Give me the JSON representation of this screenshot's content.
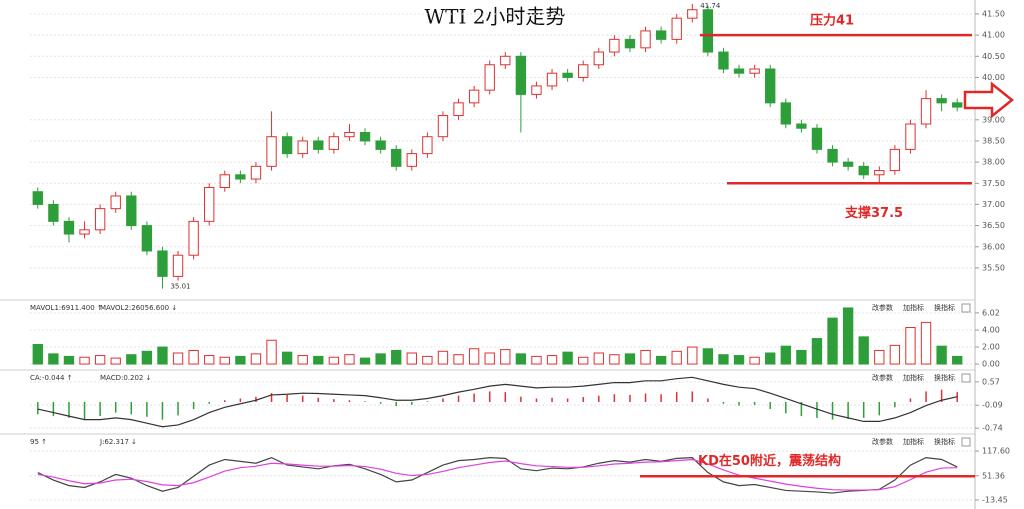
{
  "chart_data": [
    {
      "type": "candlestick",
      "title": "WTI 2小时走势",
      "up_color": "#e03030",
      "down_color": "#2e9e3a",
      "ohlc": [
        [
          37.3,
          37.4,
          36.9,
          37.0
        ],
        [
          37.0,
          37.1,
          36.5,
          36.6
        ],
        [
          36.6,
          36.7,
          36.1,
          36.3
        ],
        [
          36.3,
          36.6,
          36.2,
          36.4
        ],
        [
          36.4,
          37.0,
          36.3,
          36.9
        ],
        [
          36.9,
          37.3,
          36.8,
          37.2
        ],
        [
          37.2,
          37.3,
          36.4,
          36.5
        ],
        [
          36.5,
          36.6,
          35.8,
          35.9
        ],
        [
          35.9,
          36.0,
          35.01,
          35.3
        ],
        [
          35.3,
          35.9,
          35.2,
          35.8
        ],
        [
          35.8,
          36.7,
          35.7,
          36.6
        ],
        [
          36.6,
          37.5,
          36.5,
          37.4
        ],
        [
          37.4,
          37.8,
          37.3,
          37.7
        ],
        [
          37.7,
          37.8,
          37.5,
          37.6
        ],
        [
          37.6,
          38.0,
          37.5,
          37.9
        ],
        [
          37.9,
          39.2,
          37.8,
          38.6
        ],
        [
          38.6,
          38.7,
          38.1,
          38.2
        ],
        [
          38.2,
          38.6,
          38.1,
          38.5
        ],
        [
          38.5,
          38.6,
          38.2,
          38.3
        ],
        [
          38.3,
          38.7,
          38.2,
          38.6
        ],
        [
          38.6,
          38.9,
          38.5,
          38.7
        ],
        [
          38.7,
          38.8,
          38.4,
          38.5
        ],
        [
          38.5,
          38.6,
          38.2,
          38.3
        ],
        [
          38.3,
          38.4,
          37.8,
          37.9
        ],
        [
          37.9,
          38.3,
          37.8,
          38.2
        ],
        [
          38.2,
          38.7,
          38.1,
          38.6
        ],
        [
          38.6,
          39.2,
          38.5,
          39.1
        ],
        [
          39.1,
          39.5,
          39.0,
          39.4
        ],
        [
          39.4,
          39.8,
          39.3,
          39.7
        ],
        [
          39.7,
          40.4,
          39.6,
          40.3
        ],
        [
          40.3,
          40.6,
          40.2,
          40.5
        ],
        [
          40.5,
          40.6,
          38.7,
          39.6
        ],
        [
          39.6,
          39.9,
          39.5,
          39.8
        ],
        [
          39.8,
          40.2,
          39.7,
          40.1
        ],
        [
          40.1,
          40.2,
          39.9,
          40.0
        ],
        [
          40.0,
          40.4,
          39.9,
          40.3
        ],
        [
          40.3,
          40.7,
          40.2,
          40.6
        ],
        [
          40.6,
          41.0,
          40.5,
          40.9
        ],
        [
          40.9,
          41.0,
          40.6,
          40.7
        ],
        [
          40.7,
          41.2,
          40.6,
          41.1
        ],
        [
          41.1,
          41.2,
          40.8,
          40.9
        ],
        [
          40.9,
          41.5,
          40.8,
          41.4
        ],
        [
          41.4,
          41.74,
          41.3,
          41.6
        ],
        [
          41.6,
          41.7,
          40.5,
          40.6
        ],
        [
          40.6,
          40.7,
          40.1,
          40.2
        ],
        [
          40.2,
          40.3,
          40.0,
          40.1
        ],
        [
          40.1,
          40.3,
          40.0,
          40.2
        ],
        [
          40.2,
          40.3,
          39.3,
          39.4
        ],
        [
          39.4,
          39.5,
          38.8,
          38.9
        ],
        [
          38.9,
          39.0,
          38.7,
          38.8
        ],
        [
          38.8,
          38.9,
          38.2,
          38.3
        ],
        [
          38.3,
          38.4,
          37.9,
          38.0
        ],
        [
          38.0,
          38.1,
          37.8,
          37.9
        ],
        [
          37.9,
          38.0,
          37.6,
          37.7
        ],
        [
          37.7,
          37.9,
          37.5,
          37.8
        ],
        [
          37.8,
          38.4,
          37.7,
          38.3
        ],
        [
          38.3,
          39.0,
          38.2,
          38.9
        ],
        [
          38.9,
          39.7,
          38.8,
          39.5
        ],
        [
          39.5,
          39.6,
          39.2,
          39.4
        ],
        [
          39.4,
          39.5,
          39.2,
          39.3
        ]
      ],
      "ylim": [
        34.86,
        41.83
      ],
      "yticks": [
        {
          "value": 41.5,
          "label": "41.50"
        },
        {
          "value": 41,
          "label": "41.00"
        },
        {
          "value": 40.5,
          "label": "40.50"
        },
        {
          "value": 40,
          "label": "40.00"
        },
        {
          "value": 39,
          "label": "39.00"
        },
        {
          "value": 38.5,
          "label": "38.50"
        },
        {
          "value": 38,
          "label": "38.00"
        },
        {
          "value": 37.5,
          "label": "37.50"
        },
        {
          "value": 37,
          "label": "37.00"
        },
        {
          "value": 36.5,
          "label": "36.50"
        },
        {
          "value": 36,
          "label": "36.00"
        },
        {
          "value": 35.5,
          "label": "35.50"
        }
      ],
      "annotations": [
        {
          "label": "压力41",
          "value": 41,
          "color": "#e02828"
        },
        {
          "label": "支撑37.5",
          "value": 37.5,
          "color": "#e02828"
        }
      ]
    },
    {
      "type": "bar",
      "legend": [
        "MAVOL1:6911.400 ↑",
        "MAVOL2:26056.600 ↓"
      ],
      "toolbar": [
        "改参数",
        "加指标",
        "换指标"
      ],
      "values": [
        2.3,
        1.2,
        0.9,
        0.8,
        1.0,
        0.7,
        1.1,
        1.5,
        2.0,
        1.3,
        1.6,
        1.0,
        0.8,
        0.9,
        1.2,
        2.8,
        1.4,
        1.0,
        0.9,
        0.8,
        1.1,
        0.7,
        1.2,
        1.6,
        1.3,
        0.9,
        1.5,
        1.1,
        1.8,
        1.3,
        1.7,
        1.2,
        0.9,
        1.0,
        1.4,
        0.8,
        1.3,
        1.1,
        1.2,
        1.6,
        0.9,
        1.5,
        2.0,
        1.8,
        1.1,
        1.0,
        0.8,
        1.3,
        2.1,
        1.6,
        3.0,
        5.4,
        6.6,
        3.2,
        1.6,
        2.2,
        4.3,
        4.9,
        2.1,
        0.9
      ],
      "ylim": [
        -0.7,
        7.3
      ],
      "yticks": [
        6.02,
        {
          "value": 4,
          "label": "4.00"
        },
        {
          "value": 2,
          "label": "2.00"
        },
        {
          "value": 0,
          "label": "0.00"
        }
      ]
    },
    {
      "type": "macd",
      "legend": [
        "CA:-0.044 ↑",
        "MACD:0.202 ↓"
      ],
      "toolbar": [
        "改参数",
        "加指标",
        "换指标"
      ],
      "values": [
        -0.35,
        -0.4,
        -0.45,
        -0.48,
        -0.4,
        -0.3,
        -0.35,
        -0.42,
        -0.5,
        -0.38,
        -0.2,
        -0.05,
        0.05,
        0.1,
        0.15,
        0.25,
        0.2,
        0.18,
        0.12,
        0.08,
        0.05,
        0.02,
        -0.05,
        -0.12,
        -0.08,
        0.02,
        0.1,
        0.18,
        0.24,
        0.3,
        0.28,
        0.15,
        0.1,
        0.12,
        0.1,
        0.14,
        0.18,
        0.22,
        0.2,
        0.24,
        0.22,
        0.28,
        0.3,
        0.1,
        -0.05,
        -0.1,
        -0.08,
        -0.2,
        -0.32,
        -0.4,
        -0.45,
        -0.5,
        -0.48,
        -0.45,
        -0.38,
        -0.15,
        0.1,
        0.3,
        0.35,
        0.28
      ],
      "line": {
        "color": "#333333",
        "values": [
          -0.2,
          -0.3,
          -0.4,
          -0.5,
          -0.5,
          -0.45,
          -0.5,
          -0.6,
          -0.7,
          -0.65,
          -0.5,
          -0.3,
          -0.15,
          -0.05,
          0.05,
          0.2,
          0.22,
          0.25,
          0.24,
          0.22,
          0.2,
          0.18,
          0.12,
          0.05,
          0.05,
          0.1,
          0.18,
          0.28,
          0.36,
          0.45,
          0.5,
          0.45,
          0.4,
          0.42,
          0.42,
          0.45,
          0.5,
          0.55,
          0.55,
          0.6,
          0.6,
          0.66,
          0.7,
          0.6,
          0.5,
          0.42,
          0.38,
          0.25,
          0.1,
          -0.05,
          -0.2,
          -0.35,
          -0.45,
          -0.55,
          -0.55,
          -0.45,
          -0.3,
          -0.1,
          0.05,
          0.15
        ]
      },
      "ylim": [
        -0.85,
        0.85
      ],
      "yticks": [
        0.57,
        -0.09,
        -0.74
      ]
    },
    {
      "type": "kd",
      "legend": [
        "95 ↑",
        "J:62.317 ↓"
      ],
      "toolbar": [
        "改参数",
        "加指标",
        "换指标"
      ],
      "lines": [
        {
          "color": "#444444",
          "values": [
            60,
            40,
            25,
            20,
            35,
            55,
            45,
            25,
            10,
            20,
            50,
            80,
            95,
            90,
            85,
            100,
            80,
            75,
            70,
            78,
            82,
            70,
            55,
            35,
            40,
            60,
            80,
            92,
            95,
            100,
            98,
            70,
            65,
            72,
            70,
            75,
            85,
            92,
            88,
            95,
            90,
            98,
            100,
            60,
            35,
            25,
            28,
            20,
            12,
            10,
            8,
            5,
            10,
            12,
            15,
            40,
            80,
            100,
            95,
            75
          ]
        },
        {
          "color": "#e040e0",
          "values": [
            55,
            48,
            38,
            30,
            32,
            40,
            42,
            36,
            27,
            25,
            33,
            48,
            64,
            73,
            77,
            85,
            83,
            80,
            77,
            77,
            79,
            76,
            69,
            58,
            52,
            55,
            63,
            73,
            80,
            87,
            91,
            84,
            78,
            76,
            74,
            74,
            78,
            83,
            85,
            88,
            89,
            92,
            95,
            83,
            67,
            53,
            45,
            37,
            29,
            23,
            18,
            14,
            13,
            13,
            14,
            22,
            41,
            61,
            72,
            73
          ]
        }
      ],
      "ylim": [
        -27,
        158
      ],
      "yticks": [
        {
          "value": 117.6,
          "label": "117.60"
        },
        51.36,
        -13.45
      ],
      "annotation": {
        "label": "KD在50附近，震荡结构",
        "value": 50,
        "color": "#e02828"
      }
    }
  ]
}
